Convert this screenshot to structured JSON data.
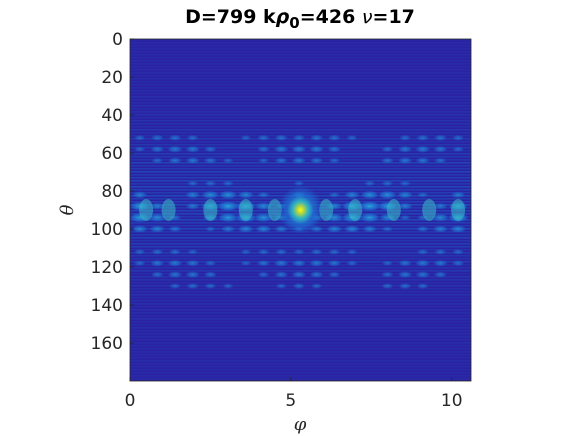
{
  "chart_data": {
    "type": "heatmap",
    "title": "D=799 kρ0=426 ν=17",
    "title_parts": {
      "d_label": "D=799 k",
      "rho": "ρ",
      "rho_sub": "0",
      "k_value": "=426 ",
      "nu": "ν",
      "nu_value": "=17"
    },
    "xlabel": "φ",
    "ylabel": "θ",
    "xlim": [
      0,
      10.6
    ],
    "ylim": [
      180,
      0
    ],
    "x_ticks": [
      0,
      5,
      10
    ],
    "x_tick_labels": [
      "0",
      "5",
      "10"
    ],
    "y_ticks": [
      0,
      20,
      40,
      60,
      80,
      100,
      120,
      140,
      160
    ],
    "y_tick_labels": [
      "0",
      "20",
      "40",
      "60",
      "80",
      "100",
      "120",
      "140",
      "160"
    ],
    "peak": {
      "phi": 5.3,
      "theta": 90
    },
    "colormap": "parula",
    "colors": {
      "background": "#2b22a3",
      "low": "#352a87",
      "mid": "#1480d5",
      "high": "#3bbdc7",
      "peak": "#f9fb0e"
    },
    "grid": false,
    "colorbar": false
  }
}
